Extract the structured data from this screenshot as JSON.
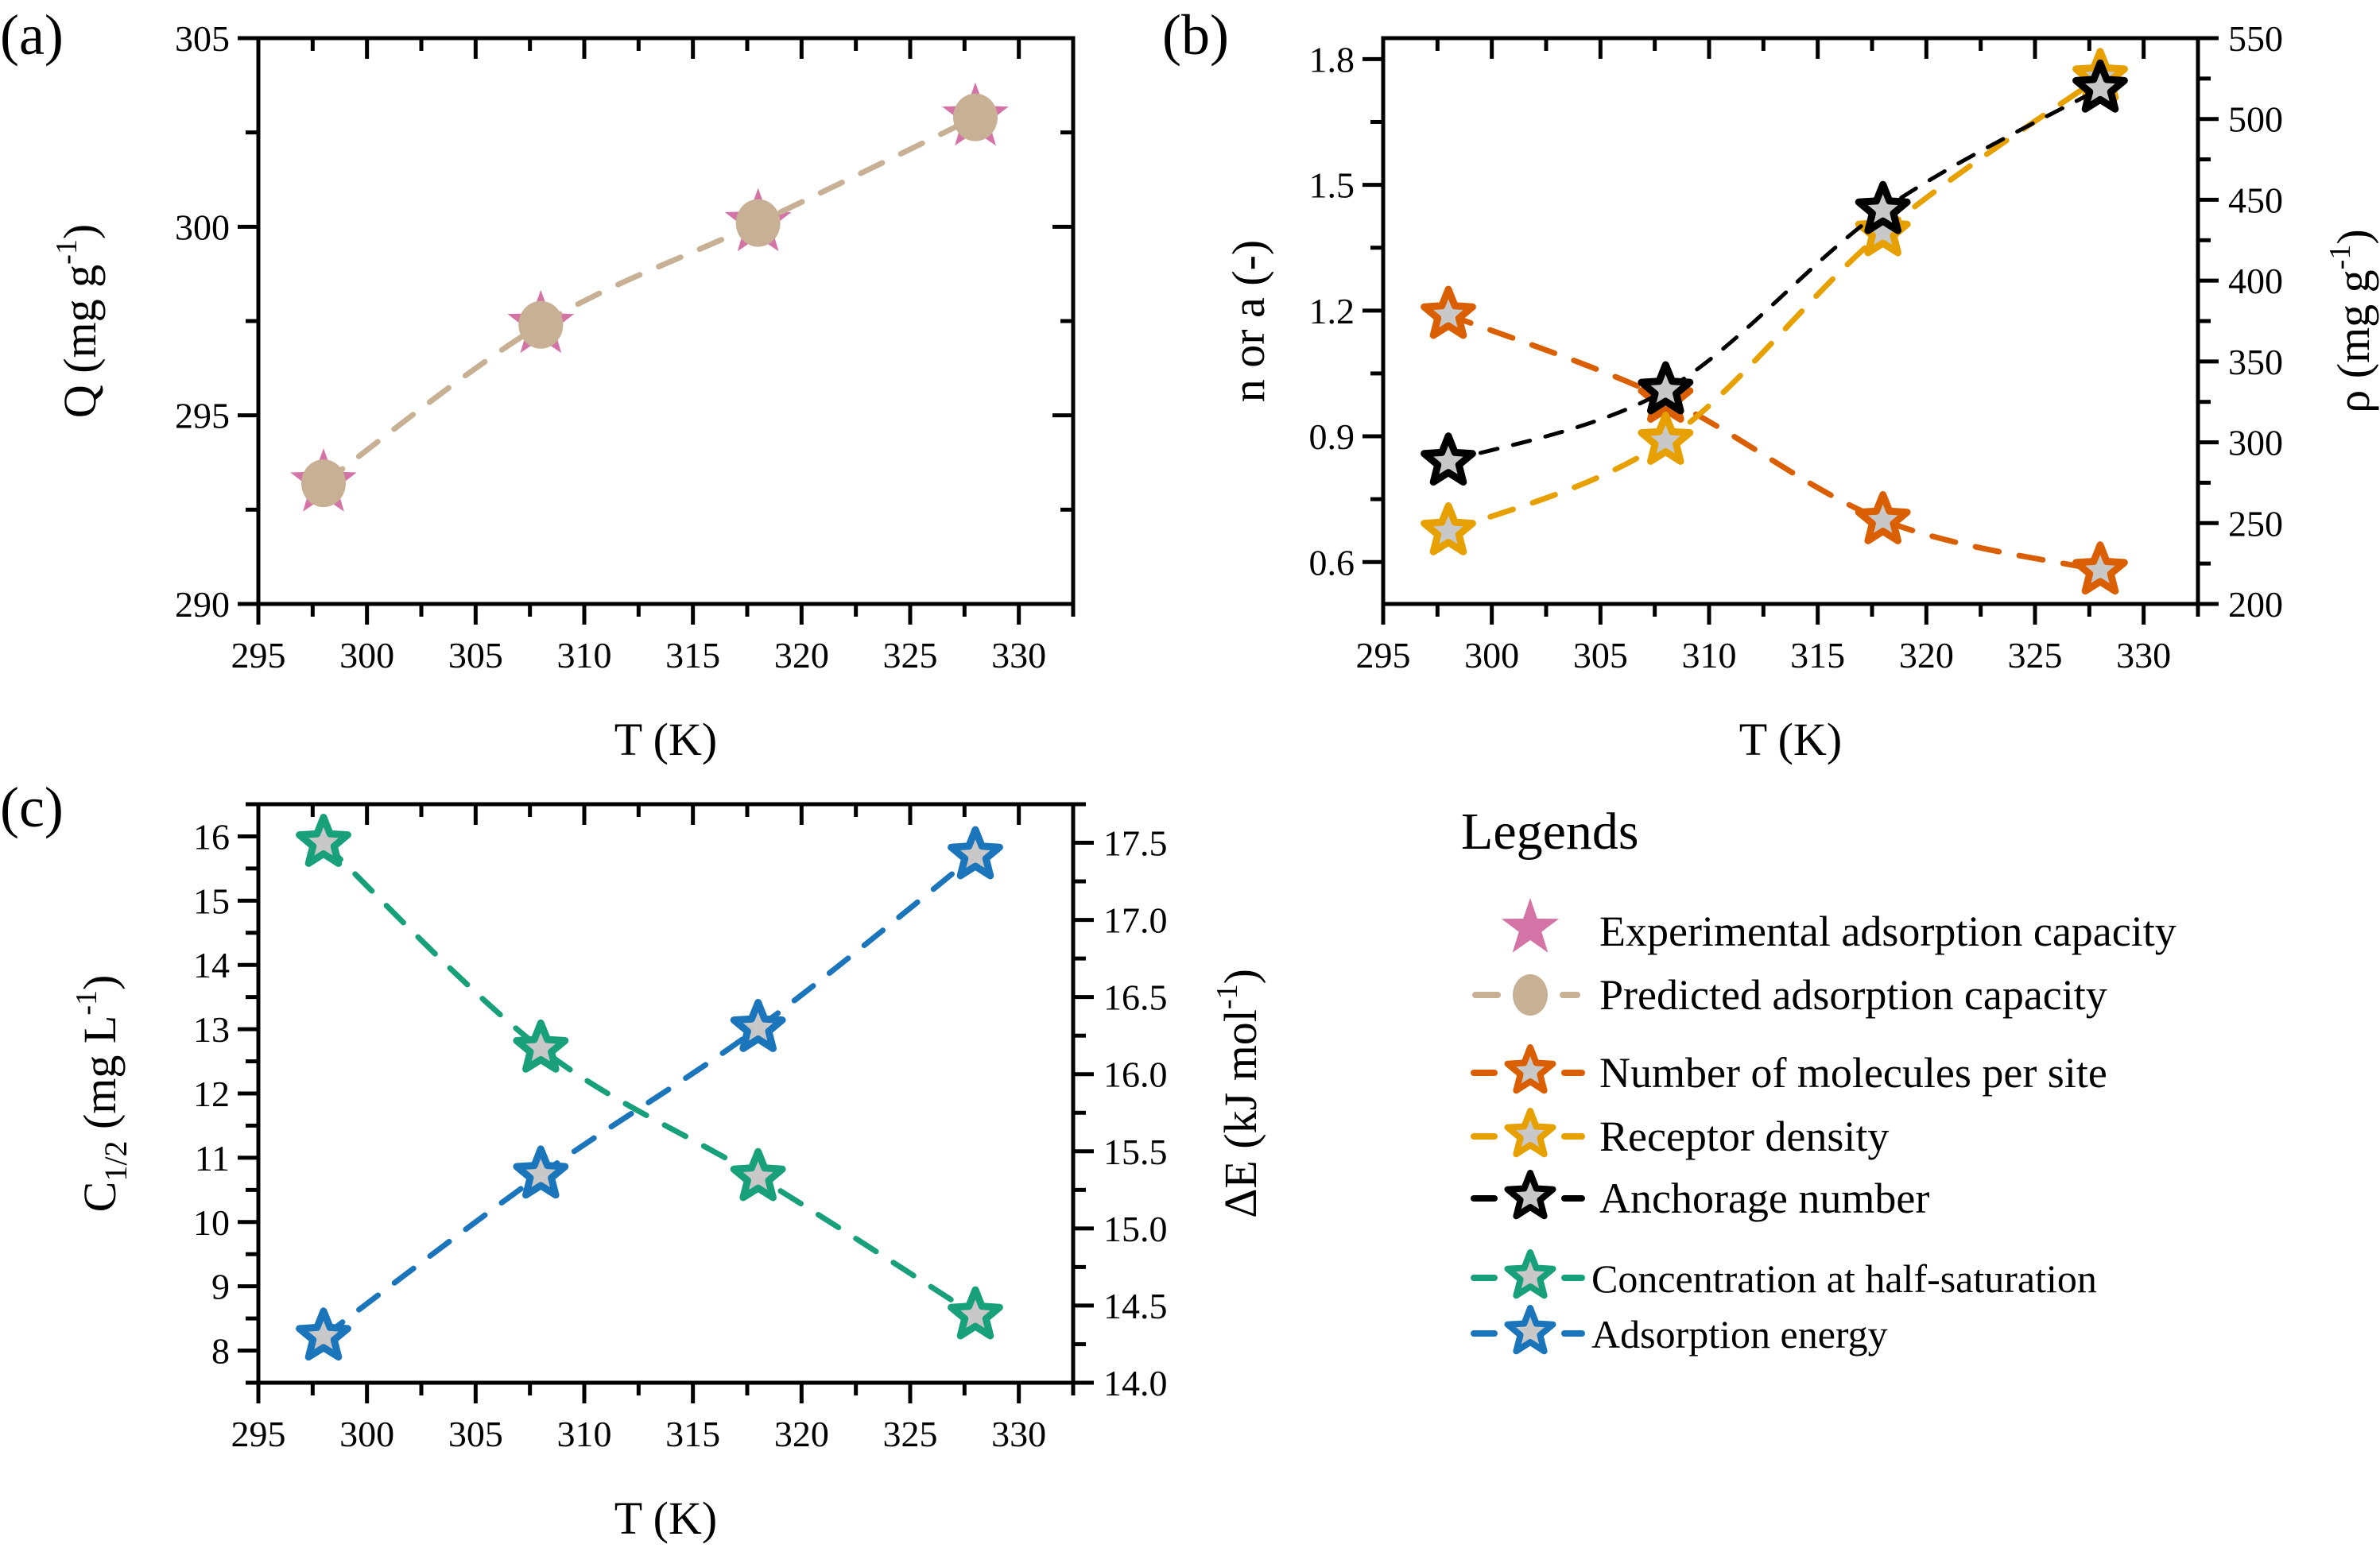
{
  "figure": {
    "panel_labels": [
      "(a)",
      "(b)",
      "(c)"
    ],
    "legend_title": "Legends"
  },
  "colors": {
    "experimental": "#D473A6",
    "predicted": "#C8B095",
    "n": "#D95F02",
    "rho": "#E6A100",
    "anchorage": "#000000",
    "c_half": "#17A07A",
    "delta_e": "#1B75BB",
    "marker_fill": "#C8C8C8"
  },
  "chart_data": [
    {
      "id": "a",
      "type": "line",
      "title": "",
      "xlabel": "T (K)",
      "ylabel": "Q (mg g-1)",
      "ylabel_parts": {
        "main": "Q (mg g",
        "sup": "-1",
        "tail": ")"
      },
      "xlim": [
        295,
        332.5
      ],
      "ylim": [
        290,
        305
      ],
      "xticks": [
        295,
        300,
        305,
        310,
        315,
        320,
        325,
        330
      ],
      "yticks": [
        290,
        295,
        300,
        305
      ],
      "grid": false,
      "x": [
        298,
        308,
        318,
        328
      ],
      "series": [
        {
          "name": "Experimental adsorption capacity",
          "key": "experimental",
          "axis": "left",
          "marker": "star-filled",
          "line": "none",
          "values": [
            293.2,
            297.4,
            300.1,
            302.9
          ]
        },
        {
          "name": "Predicted adsorption capacity",
          "key": "predicted",
          "axis": "left",
          "marker": "circle",
          "line": "dashed",
          "values": [
            293.2,
            297.4,
            300.1,
            302.9
          ]
        }
      ]
    },
    {
      "id": "b",
      "type": "line",
      "title": "",
      "xlabel": "T (K)",
      "ylabel": "n or a (-)",
      "ylabel_right": "ρ (mg g-1)",
      "ylabel_right_parts": {
        "main": "ρ (mg g",
        "sup": "-1",
        "tail": ")"
      },
      "xlim": [
        295,
        332.5
      ],
      "ylim": [
        0.5,
        1.85
      ],
      "ylim_right": [
        200,
        550
      ],
      "xticks": [
        295,
        300,
        305,
        310,
        315,
        320,
        325,
        330
      ],
      "yticks": [
        "0.6",
        "0.9",
        "1.2",
        "1.5",
        "1.8"
      ],
      "yticks_right": [
        200,
        250,
        300,
        350,
        400,
        450,
        500,
        550
      ],
      "grid": false,
      "x": [
        298,
        308,
        318,
        328
      ],
      "series": [
        {
          "name": "Number of molecules per site",
          "key": "n",
          "axis": "left",
          "marker": "star-outline",
          "line": "dashed",
          "values": [
            1.19,
            0.99,
            0.7,
            0.58
          ]
        },
        {
          "name": "Receptor density",
          "key": "rho",
          "axis": "right",
          "marker": "star-outline",
          "line": "dashed",
          "values": [
            245,
            301,
            430,
            526
          ]
        },
        {
          "name": "Anchorage number",
          "key": "anchorage",
          "axis": "left",
          "marker": "star-outline",
          "line": "dashed",
          "values": [
            0.84,
            1.01,
            1.44,
            1.73
          ]
        }
      ]
    },
    {
      "id": "c",
      "type": "line",
      "title": "",
      "xlabel": "T (K)",
      "ylabel": "C1/2 (mg L-1)",
      "ylabel_parts": {
        "main": "C",
        "sub": "1/2",
        "mid": " (mg L",
        "sup": "-1",
        "tail": ")"
      },
      "ylabel_right": "ΔE (kJ mol-1)",
      "ylabel_right_parts": {
        "main": "ΔE (kJ mol",
        "sup": "-1",
        "tail": ")"
      },
      "xlim": [
        295,
        332.5
      ],
      "ylim": [
        7.5,
        16.5
      ],
      "ylim_right": [
        14.0,
        17.75
      ],
      "xticks": [
        295,
        300,
        305,
        310,
        315,
        320,
        325,
        330
      ],
      "yticks": [
        8,
        9,
        10,
        11,
        12,
        13,
        14,
        15,
        16
      ],
      "yticks_right": [
        "14.0",
        "14.5",
        "15.0",
        "15.5",
        "16.0",
        "16.5",
        "17.0",
        "17.5"
      ],
      "grid": false,
      "x": [
        298,
        308,
        318,
        328
      ],
      "series": [
        {
          "name": "Concentration at half-saturation",
          "key": "c_half",
          "axis": "left",
          "marker": "star-outline",
          "line": "dashed",
          "values": [
            15.9,
            12.7,
            10.7,
            8.55
          ]
        },
        {
          "name": "Adsorption energy",
          "key": "delta_e",
          "axis": "right",
          "marker": "star-outline",
          "line": "dashed",
          "values": [
            14.3,
            15.35,
            16.3,
            17.42
          ]
        }
      ]
    }
  ],
  "legend": {
    "title": "Legends",
    "groups": [
      [
        {
          "label": "Experimental adsorption capacity",
          "key": "experimental",
          "symbol": "star-filled"
        },
        {
          "label": "Predicted adsorption capacity",
          "key": "predicted",
          "symbol": "circle-dash"
        }
      ],
      [
        {
          "label": "Number of molecules per site",
          "key": "n",
          "symbol": "star-dash"
        },
        {
          "label": "Receptor density",
          "key": "rho",
          "symbol": "star-dash"
        },
        {
          "label": "Anchorage number",
          "key": "anchorage",
          "symbol": "star-dash"
        }
      ],
      [
        {
          "label": "Concentration at half-saturation",
          "key": "c_half",
          "symbol": "star-dash"
        },
        {
          "label": "Adsorption energy",
          "key": "delta_e",
          "symbol": "star-dash"
        }
      ]
    ]
  }
}
